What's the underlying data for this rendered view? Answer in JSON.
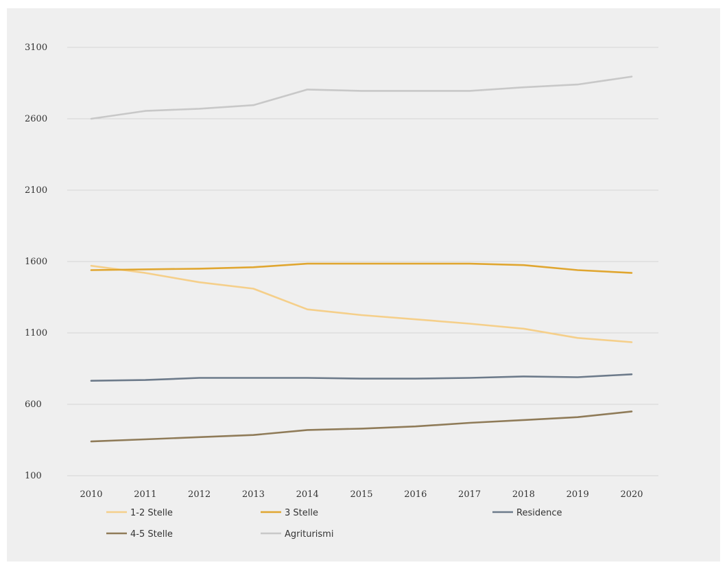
{
  "chart_data": {
    "type": "line",
    "title": "",
    "xlabel": "",
    "ylabel": "",
    "x": [
      "2010",
      "2011",
      "2012",
      "2013",
      "2014",
      "2015",
      "2016",
      "2017",
      "2018",
      "2019",
      "2020"
    ],
    "ylim": [
      100,
      3100
    ],
    "yticks": [
      100,
      600,
      1100,
      1600,
      2100,
      2600,
      3100
    ],
    "grid": true,
    "legend_position": "bottom",
    "series": [
      {
        "name": "1-2 Stelle",
        "color": "#f5cf8a",
        "values": [
          1570,
          1520,
          1455,
          1410,
          1265,
          1225,
          1195,
          1165,
          1130,
          1065,
          1035
        ]
      },
      {
        "name": "3 Stelle",
        "color": "#e0a630",
        "values": [
          1540,
          1545,
          1550,
          1560,
          1585,
          1585,
          1585,
          1585,
          1575,
          1540,
          1520
        ]
      },
      {
        "name": "Residence",
        "color": "#6c7a8a",
        "values": [
          765,
          770,
          785,
          785,
          785,
          780,
          780,
          785,
          795,
          790,
          810
        ]
      },
      {
        "name": "4-5 Stelle",
        "color": "#8f7b58",
        "values": [
          340,
          355,
          370,
          385,
          420,
          430,
          445,
          470,
          490,
          510,
          550
        ]
      },
      {
        "name": "Agriturismi",
        "color": "#c8c8c8",
        "values": [
          2600,
          2655,
          2670,
          2695,
          2805,
          2795,
          2795,
          2795,
          2820,
          2840,
          2895
        ]
      }
    ]
  }
}
